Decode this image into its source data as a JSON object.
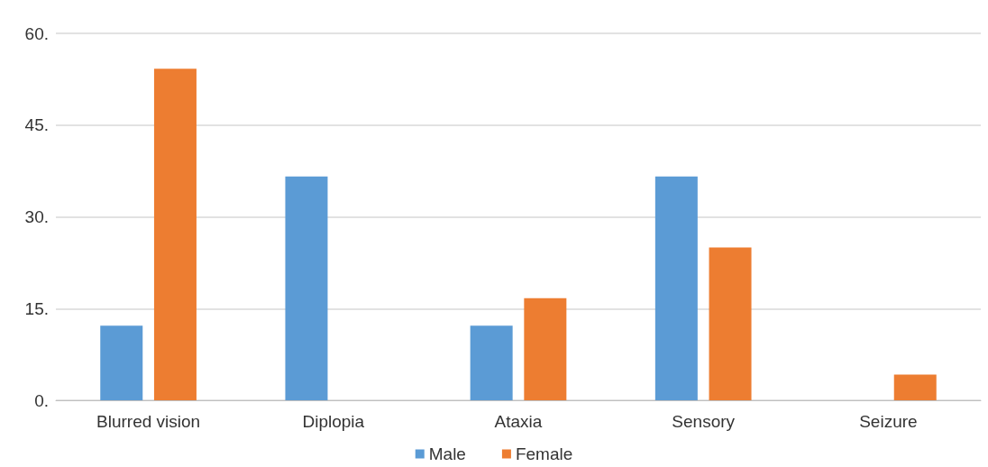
{
  "chart_data": {
    "type": "bar",
    "categories": [
      "Blurred vision",
      "Diplopia",
      "Ataxia",
      "Sensory",
      "Seizure"
    ],
    "series": [
      {
        "name": "Male",
        "color": "#5b9bd5",
        "values": [
          12.2,
          36.6,
          12.2,
          36.6,
          0
        ]
      },
      {
        "name": "Female",
        "color": "#ed7d31",
        "values": [
          54.2,
          0,
          16.7,
          25,
          4.2
        ]
      }
    ],
    "ylim": [
      0,
      60
    ],
    "yticks": [
      {
        "value": 0,
        "label": "0."
      },
      {
        "value": 15,
        "label": "15."
      },
      {
        "value": 30,
        "label": "30."
      },
      {
        "value": 45,
        "label": "45."
      },
      {
        "value": 60,
        "label": "60."
      }
    ],
    "grid": "y",
    "legend": "bottom"
  }
}
